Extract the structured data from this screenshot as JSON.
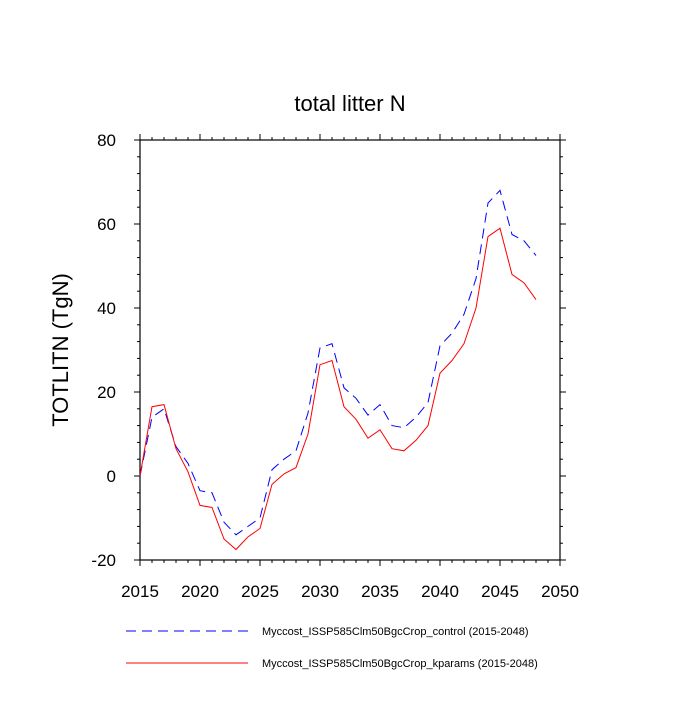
{
  "chart_data": {
    "type": "line",
    "title": "total litter N",
    "xlabel": "",
    "ylabel": "TOTLITN  (TgN)",
    "xlim": [
      2015,
      2050
    ],
    "ylim": [
      -20,
      80
    ],
    "xticks": [
      2015,
      2020,
      2025,
      2030,
      2035,
      2040,
      2045,
      2050
    ],
    "yticks": [
      -20,
      0,
      20,
      40,
      60,
      80
    ],
    "x": [
      2015,
      2016,
      2017,
      2018,
      2019,
      2020,
      2021,
      2022,
      2023,
      2024,
      2025,
      2026,
      2027,
      2028,
      2029,
      2030,
      2031,
      2032,
      2033,
      2034,
      2035,
      2036,
      2037,
      2038,
      2039,
      2040,
      2041,
      2042,
      2043,
      2044,
      2045,
      2046,
      2047,
      2048
    ],
    "series": [
      {
        "name": "Myccost_ISSP585Clm50BgcCrop_control (2015-2048)",
        "color": "#0000ff",
        "style": "dashed",
        "values": [
          0,
          14,
          16,
          7,
          3,
          -3.5,
          -4,
          -11,
          -14,
          -12,
          -10,
          1.5,
          4,
          6,
          15,
          30.5,
          31.5,
          21,
          18.5,
          14.5,
          17,
          12,
          11.5,
          14,
          17.5,
          31,
          34,
          38.5,
          47,
          65,
          68,
          57.5,
          56,
          52.5
        ]
      },
      {
        "name": "Myccost_ISSP585Clm50BgcCrop_kparams (2015-2048)",
        "color": "#ff0000",
        "style": "solid",
        "values": [
          0,
          16.5,
          17,
          6.5,
          1,
          -7,
          -7.5,
          -15,
          -17.5,
          -14.5,
          -12.5,
          -2,
          0.5,
          2,
          10,
          26.5,
          27.5,
          16.5,
          13.5,
          9,
          11,
          6.5,
          6,
          8.5,
          12,
          24.5,
          27.5,
          31.5,
          40,
          57,
          59,
          48,
          46,
          42
        ]
      }
    ]
  }
}
